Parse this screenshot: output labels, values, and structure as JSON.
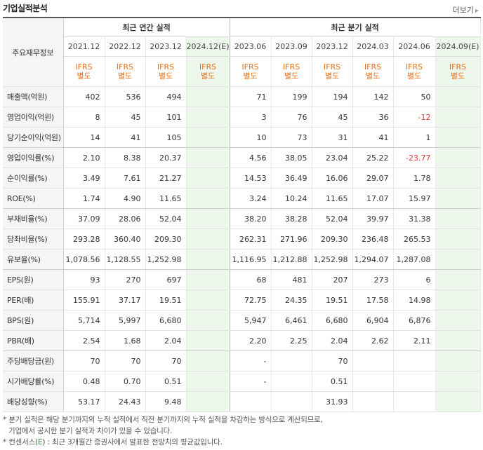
{
  "title": "기업실적분석",
  "more": {
    "label": "더보기",
    "icon": "chevron-right-icon"
  },
  "header": {
    "row_label": "주요재무정보",
    "annual_group": "최근 연간 실적",
    "quarter_group": "최근 분기 실적",
    "annual_periods": [
      "2021.12",
      "2022.12",
      "2023.12",
      "2024.12(E)"
    ],
    "quarter_periods": [
      "2023.06",
      "2023.09",
      "2023.12",
      "2024.03",
      "2024.06",
      "2024.09(E)"
    ],
    "standard_line1": "IFRS",
    "standard_line2": "별도"
  },
  "rows": [
    {
      "label": "매출액(억원)",
      "annual": [
        "402",
        "536",
        "494",
        ""
      ],
      "quarter": [
        "71",
        "199",
        "194",
        "142",
        "50",
        ""
      ]
    },
    {
      "label": "영업이익(억원)",
      "annual": [
        "8",
        "45",
        "101",
        ""
      ],
      "quarter": [
        "3",
        "76",
        "45",
        "36",
        "-12",
        ""
      ]
    },
    {
      "label": "당기순이익(억원)",
      "annual": [
        "14",
        "41",
        "105",
        ""
      ],
      "quarter": [
        "10",
        "73",
        "31",
        "41",
        "1",
        ""
      ]
    },
    {
      "label": "영업이익률(%)",
      "annual": [
        "2.10",
        "8.38",
        "20.37",
        ""
      ],
      "quarter": [
        "4.56",
        "38.05",
        "23.04",
        "25.22",
        "-23.77",
        ""
      ]
    },
    {
      "label": "순이익률(%)",
      "annual": [
        "3.49",
        "7.61",
        "21.27",
        ""
      ],
      "quarter": [
        "14.53",
        "36.49",
        "16.06",
        "29.07",
        "1.78",
        ""
      ]
    },
    {
      "label": "ROE(%)",
      "annual": [
        "1.74",
        "4.90",
        "11.65",
        ""
      ],
      "quarter": [
        "3.24",
        "10.24",
        "11.65",
        "17.07",
        "15.97",
        ""
      ]
    },
    {
      "label": "부채비율(%)",
      "annual": [
        "37.09",
        "28.06",
        "52.04",
        ""
      ],
      "quarter": [
        "38.20",
        "38.28",
        "52.04",
        "39.97",
        "31.38",
        ""
      ]
    },
    {
      "label": "당좌비율(%)",
      "annual": [
        "293.28",
        "360.40",
        "209.30",
        ""
      ],
      "quarter": [
        "262.31",
        "271.96",
        "209.30",
        "236.48",
        "265.53",
        ""
      ]
    },
    {
      "label": "유보율(%)",
      "annual": [
        "1,078.56",
        "1,128.55",
        "1,252.98",
        ""
      ],
      "quarter": [
        "1,116.95",
        "1,212.88",
        "1,252.98",
        "1,294.07",
        "1,287.08",
        ""
      ]
    },
    {
      "label": "EPS(원)",
      "annual": [
        "93",
        "270",
        "697",
        ""
      ],
      "quarter": [
        "68",
        "481",
        "207",
        "273",
        "6",
        ""
      ]
    },
    {
      "label": "PER(배)",
      "annual": [
        "155.91",
        "37.17",
        "19.51",
        ""
      ],
      "quarter": [
        "72.75",
        "24.35",
        "19.51",
        "17.58",
        "14.98",
        ""
      ]
    },
    {
      "label": "BPS(원)",
      "annual": [
        "5,714",
        "5,997",
        "6,680",
        ""
      ],
      "quarter": [
        "5,947",
        "6,461",
        "6,680",
        "6,904",
        "6,876",
        ""
      ]
    },
    {
      "label": "PBR(배)",
      "annual": [
        "2.54",
        "1.68",
        "2.04",
        ""
      ],
      "quarter": [
        "2.20",
        "2.25",
        "2.04",
        "2.62",
        "2.11",
        ""
      ]
    },
    {
      "label": "주당배당금(원)",
      "annual": [
        "70",
        "70",
        "70",
        ""
      ],
      "quarter": [
        "-",
        "",
        "70",
        "",
        "",
        ""
      ]
    },
    {
      "label": "시가배당률(%)",
      "annual": [
        "0.48",
        "0.70",
        "0.51",
        ""
      ],
      "quarter": [
        "-",
        "",
        "0.51",
        "",
        "",
        ""
      ]
    },
    {
      "label": "배당성향(%)",
      "annual": [
        "53.17",
        "24.43",
        "9.48",
        ""
      ],
      "quarter": [
        "",
        "",
        "31.93",
        "",
        "",
        ""
      ]
    }
  ],
  "notes": {
    "line1": "* 분기 실적은 해당 분기까지의 누적 실적에서 직전 분기까지의 누적 실적을 차감하는 방식으로 계산되므로,",
    "line2": "기업에서 공시한 분기 실적과 차이가 있을 수 있습니다.",
    "line3_prefix": "* 컨센서스(",
    "line3_mark": "E",
    "line3_suffix": ") : 최근 3개월간 증권사에서 발표한 전망치의 평균값입니다."
  },
  "colors": {
    "ifrs_text": "#e8701a",
    "estimate_bg": "#eef7ec",
    "negative": "#e23b3b",
    "consensus_mark": "#2a9d3a"
  }
}
